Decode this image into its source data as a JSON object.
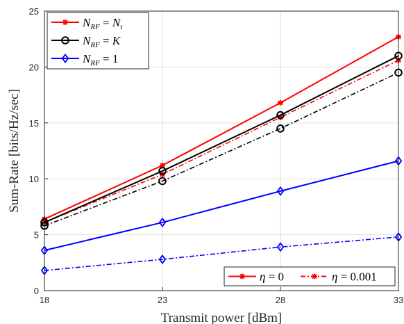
{
  "chart_data": {
    "type": "line",
    "xlabel": "Transmit power [dBm]",
    "ylabel": "Sum-Rate [bits/Hz/sec]",
    "x": [
      18,
      23,
      28,
      33
    ],
    "xticks": [
      "18",
      "23",
      "28",
      "33"
    ],
    "yticks": [
      "0",
      "5",
      "10",
      "15",
      "20",
      "25"
    ],
    "xlim": [
      18,
      33
    ],
    "ylim": [
      0,
      25
    ],
    "grid": true,
    "series": [
      {
        "name": "N_RF = N_t, η = 0",
        "color": "#ff0000",
        "marker": "asterisk",
        "dash": "solid",
        "values": [
          6.4,
          11.2,
          16.8,
          22.7
        ]
      },
      {
        "name": "N_RF = N_t, η = 0.001",
        "color": "#ff0000",
        "marker": "asterisk",
        "dash": "dashdot",
        "values": [
          6.1,
          10.4,
          15.5,
          20.6
        ]
      },
      {
        "name": "N_RF = K, η = 0",
        "color": "#000000",
        "marker": "circle",
        "dash": "solid",
        "values": [
          6.1,
          10.7,
          15.7,
          21.0
        ]
      },
      {
        "name": "N_RF = K, η = 0.001",
        "color": "#000000",
        "marker": "circle",
        "dash": "dashdot",
        "values": [
          5.8,
          9.8,
          14.5,
          19.5
        ]
      },
      {
        "name": "N_RF = 1, η = 0",
        "color": "#0000ff",
        "marker": "diamond",
        "dash": "solid",
        "values": [
          3.6,
          6.1,
          8.9,
          11.6
        ]
      },
      {
        "name": "N_RF = 1, η = 0.001",
        "color": "#0000ff",
        "marker": "diamond",
        "dash": "dashdot",
        "values": [
          1.8,
          2.8,
          3.9,
          4.8
        ]
      }
    ],
    "legend_top": {
      "placement": "top-left",
      "entries": [
        {
          "label_main": "N",
          "label_sub": "RF",
          "label_rest": " = ",
          "label_rhs": "N",
          "label_rhs_sub": "t",
          "color": "#ff0000",
          "marker": "asterisk"
        },
        {
          "label_main": "N",
          "label_sub": "RF",
          "label_rest": " = ",
          "label_rhs": "K",
          "label_rhs_sub": "",
          "color": "#000000",
          "marker": "circle"
        },
        {
          "label_main": "N",
          "label_sub": "RF",
          "label_rest": " = ",
          "label_rhs": "1",
          "label_rhs_sub": "",
          "color": "#0000ff",
          "marker": "diamond"
        }
      ]
    },
    "legend_bottom": {
      "placement": "bottom-right",
      "entries": [
        {
          "label_var": "η",
          "label_rest": " = 0",
          "color": "#ff0000",
          "dash": "solid"
        },
        {
          "label_var": "η",
          "label_rest": " = 0.001",
          "color": "#ff0000",
          "dash": "dashdot"
        }
      ]
    }
  }
}
